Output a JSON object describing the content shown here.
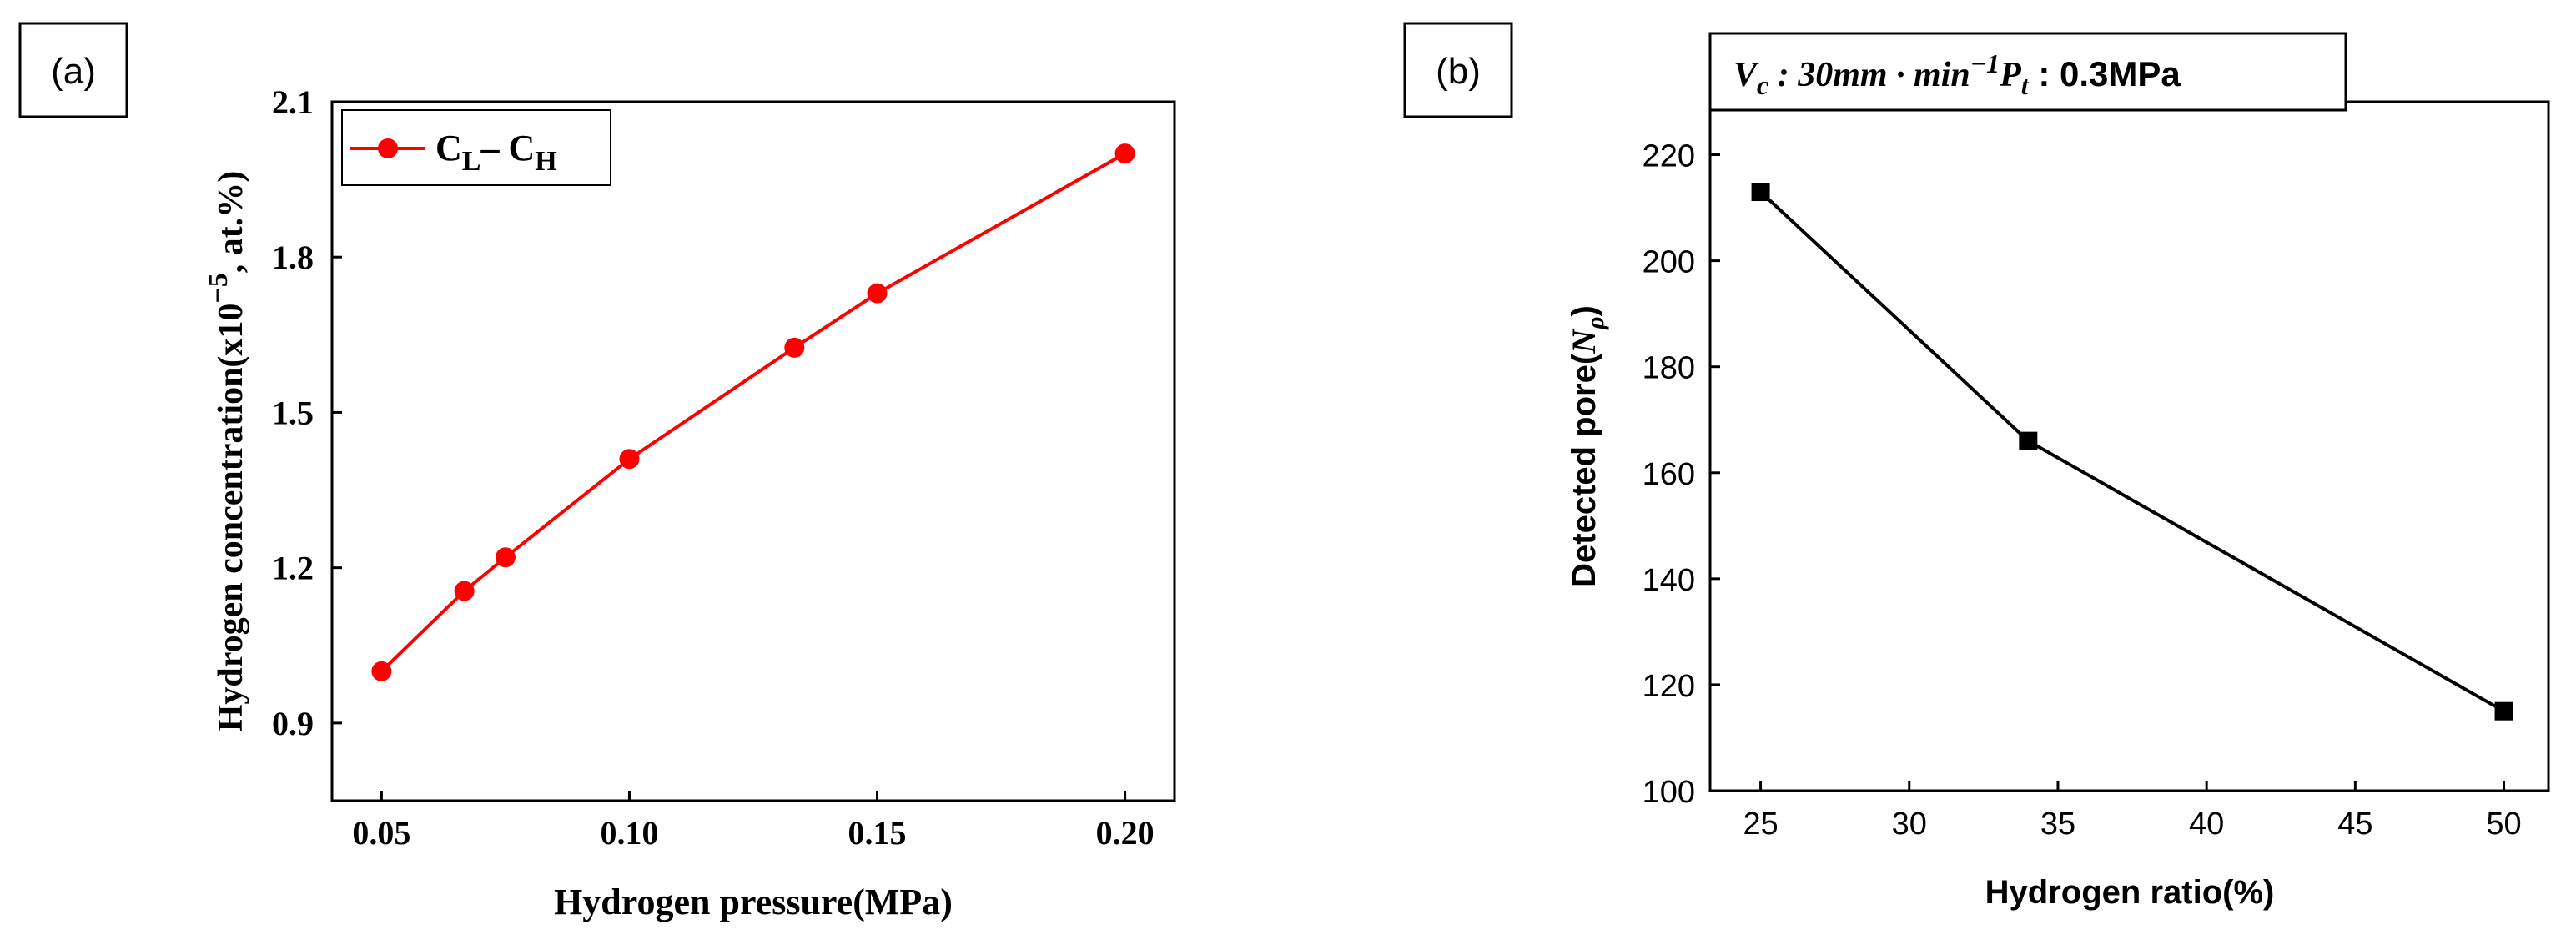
{
  "chart_data": [
    {
      "type": "line",
      "panel_label": "(a)",
      "xlabel": "Hydrogen pressure(MPa)",
      "ylabel": {
        "prefix": "Hydrogen concentration(x10",
        "exponent": "−5",
        "suffix": ", at.%)"
      },
      "xlim": [
        0.04,
        0.21
      ],
      "ylim": [
        0.75,
        2.1
      ],
      "xticks": [
        0.05,
        0.1,
        0.15,
        0.2
      ],
      "xtick_labels": [
        "0.05",
        "0.10",
        "0.15",
        "0.20"
      ],
      "yticks": [
        0.9,
        1.2,
        1.5,
        1.8,
        2.1
      ],
      "ytick_labels": [
        "0.9",
        "1.2",
        "1.5",
        "1.8",
        "2.1"
      ],
      "legend": {
        "position": "top-left",
        "label_parts": [
          "C",
          "L",
          "– C",
          "H"
        ]
      },
      "color": "#ff0000",
      "marker": "circle",
      "series": [
        {
          "name": "CL– CH",
          "x": [
            0.05,
            0.0667,
            0.075,
            0.1,
            0.1333,
            0.15,
            0.2
          ],
          "y": [
            1.0,
            1.155,
            1.22,
            1.41,
            1.625,
            1.73,
            2.0
          ]
        }
      ]
    },
    {
      "type": "line",
      "panel_label": "(b)",
      "annotation": {
        "vc": "V",
        "vc_sub": "c",
        "vc_text": " : 30mm · min",
        "vc_sup": "−1",
        "pt": "P",
        "pt_sub": "t",
        "pt_text": " : 0.3MPa"
      },
      "xlabel": "Hydrogen ratio(%)",
      "ylabel": {
        "prefix": "Detected pore(",
        "symbol": "N",
        "sub": "ρ",
        "suffix": ")"
      },
      "xlim": [
        23.3,
        51.5
      ],
      "ylim": [
        100,
        230
      ],
      "xticks": [
        25,
        30,
        35,
        40,
        45,
        50
      ],
      "xtick_labels": [
        "25",
        "30",
        "35",
        "40",
        "45",
        "50"
      ],
      "yticks": [
        100,
        120,
        140,
        160,
        180,
        200,
        220
      ],
      "ytick_labels": [
        "100",
        "120",
        "140",
        "160",
        "180",
        "200",
        "220"
      ],
      "color": "#000000",
      "marker": "square",
      "series": [
        {
          "name": "Detected pore",
          "x": [
            25,
            34,
            50
          ],
          "y": [
            213,
            166,
            115
          ]
        }
      ]
    }
  ]
}
